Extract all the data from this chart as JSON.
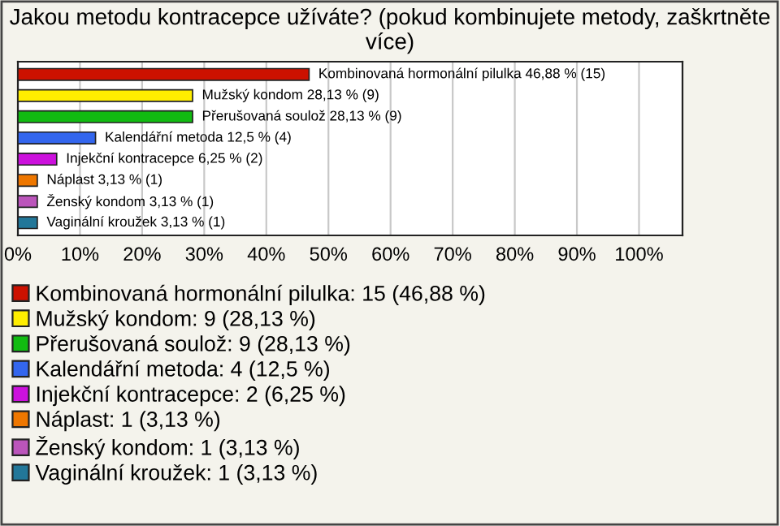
{
  "chart_data": {
    "type": "bar",
    "orientation": "horizontal",
    "title": "Jakou metodu kontracepce užíváte? (pokud kombinujete metody, zaškrtněte více)",
    "categories": [
      null,
      null,
      null,
      null,
      null,
      null,
      null,
      null
    ],
    "series": [
      {
        "name": "Kombinovaná hormonální pilulka: 15 (46,88 %)",
        "color": "#cc1100",
        "values": [
          46.88,
          null,
          null,
          null,
          null,
          null,
          null,
          null
        ],
        "value_labels": [
          "Kombinovaná hormonální pilulka 46,88 % (15)",
          null,
          null,
          null,
          null,
          null,
          null,
          null
        ]
      },
      {
        "name": "Mužský kondom: 9 (28,13 %)",
        "color": "#ffee00",
        "values": [
          null,
          28.13,
          null,
          null,
          null,
          null,
          null,
          null
        ],
        "value_labels": [
          null,
          "Mužský kondom 28,13 % (9)",
          null,
          null,
          null,
          null,
          null,
          null
        ]
      },
      {
        "name": "Přerušovaná soulož: 9 (28,13 %)",
        "color": "#11bb11",
        "values": [
          null,
          null,
          28.13,
          null,
          null,
          null,
          null,
          null
        ],
        "value_labels": [
          null,
          null,
          "Přerušovaná soulož 28,13 % (9)",
          null,
          null,
          null,
          null,
          null
        ]
      },
      {
        "name": "Kalendářní metoda: 4 (12,5 %)",
        "color": "#3366ee",
        "values": [
          null,
          null,
          null,
          12.5,
          null,
          null,
          null,
          null
        ],
        "value_labels": [
          null,
          null,
          null,
          "Kalendářní metoda 12,5 % (4)",
          null,
          null,
          null,
          null
        ]
      },
      {
        "name": "Injekční kontracepce: 2 (6,25 %)",
        "color": "#cc11dd",
        "values": [
          null,
          null,
          null,
          null,
          6.25,
          null,
          null,
          null
        ],
        "value_labels": [
          null,
          null,
          null,
          null,
          "Injekční kontracepce 6,25 % (2)",
          null,
          null,
          null
        ]
      },
      {
        "name": "Náplast: 1 (3,13 %)",
        "color": "#ee7700",
        "values": [
          null,
          null,
          null,
          null,
          null,
          3.13,
          null,
          null
        ],
        "value_labels": [
          null,
          null,
          null,
          null,
          null,
          "Náplast 3,13 % (1)",
          null,
          null
        ]
      },
      {
        "name": "Ženský kondom: 1 (3,13 %)",
        "color": "#bb55bb",
        "values": [
          null,
          null,
          null,
          null,
          null,
          null,
          3.13,
          null
        ],
        "value_labels": [
          null,
          null,
          null,
          null,
          null,
          null,
          "Ženský kondom 3,13 % (1)",
          null
        ]
      },
      {
        "name": "Vaginální kroužek: 1 (3,13 %)",
        "color": "#227799",
        "values": [
          null,
          null,
          null,
          null,
          null,
          null,
          null,
          3.13
        ],
        "value_labels": [
          null,
          null,
          null,
          null,
          null,
          null,
          null,
          "Vaginální kroužek 3,13 % (1)"
        ]
      }
    ],
    "xlim": [
      0,
      107
    ],
    "xticks": [
      {
        "value": 0,
        "label": "0%"
      },
      {
        "value": 10,
        "label": "10%"
      },
      {
        "value": 20,
        "label": "20%"
      },
      {
        "value": 30,
        "label": "30%"
      },
      {
        "value": 40,
        "label": "40%"
      },
      {
        "value": 50,
        "label": "50%"
      },
      {
        "value": 60,
        "label": "60%"
      },
      {
        "value": 70,
        "label": "70%"
      },
      {
        "value": 80,
        "label": "80%"
      },
      {
        "value": 90,
        "label": "90%"
      },
      {
        "value": 100,
        "label": "100%"
      }
    ],
    "grid": "x",
    "legend": "bottom"
  }
}
